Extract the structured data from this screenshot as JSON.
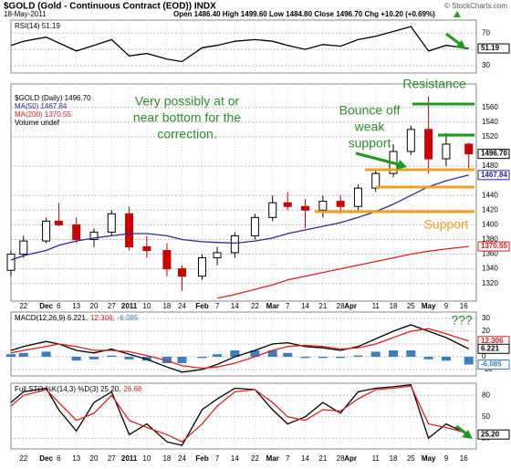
{
  "header": {
    "title": "$GOLD (Gold - Continuous Contract (EOD)) INDX",
    "date": "18-May-2011",
    "quote": "Open 1486.40 High 1499.60 Low 1484.80 Close 1496.70 Chg +10.20 (+0.69%)",
    "credit": "© StockCharts.com"
  },
  "xaxis": {
    "xlim": [
      0,
      185
    ],
    "xticks": [
      {
        "value": 5,
        "label": "22"
      },
      {
        "value": 14,
        "label": "Dec"
      },
      {
        "value": 19,
        "label": "6"
      },
      {
        "value": 26,
        "label": "13"
      },
      {
        "value": 33,
        "label": "20"
      },
      {
        "value": 40,
        "label": "27"
      },
      {
        "value": 47,
        "label": "2011"
      },
      {
        "value": 54,
        "label": "10"
      },
      {
        "value": 62,
        "label": "18"
      },
      {
        "value": 68,
        "label": "24"
      },
      {
        "value": 76,
        "label": "Feb"
      },
      {
        "value": 82,
        "label": "7"
      },
      {
        "value": 89,
        "label": "14"
      },
      {
        "value": 97,
        "label": "22"
      },
      {
        "value": 104,
        "label": "Mar"
      },
      {
        "value": 110,
        "label": "7"
      },
      {
        "value": 117,
        "label": "14"
      },
      {
        "value": 124,
        "label": "21"
      },
      {
        "value": 131,
        "label": "28"
      },
      {
        "value": 135,
        "label": "Apr"
      },
      {
        "value": 145,
        "label": "11"
      },
      {
        "value": 152,
        "label": "18"
      },
      {
        "value": 159,
        "label": "25"
      },
      {
        "value": 166,
        "label": "May"
      },
      {
        "value": 173,
        "label": "9"
      },
      {
        "value": 180,
        "label": "16"
      }
    ]
  },
  "chart_data": [
    {
      "type": "line",
      "legend": [
        {
          "text": "RSI(14) 51.19",
          "color": "#000000"
        }
      ],
      "x": [
        0,
        5,
        14,
        19,
        26,
        33,
        40,
        47,
        54,
        62,
        68,
        76,
        82,
        89,
        97,
        104,
        110,
        117,
        124,
        131,
        138,
        145,
        152,
        159,
        166,
        173,
        182
      ],
      "ylim": [
        21,
        86
      ],
      "yticks": [
        30,
        50,
        70
      ],
      "series": [
        {
          "color": "#000000",
          "values": [
            55,
            60,
            65,
            58,
            48,
            55,
            62,
            42,
            45,
            38,
            35,
            52,
            55,
            60,
            62,
            60,
            55,
            50,
            56,
            54,
            62,
            66,
            72,
            78,
            48,
            55,
            51.19
          ]
        }
      ],
      "value_boxes": [
        {
          "label": "51.19",
          "value": 51.19,
          "color": "#000000"
        }
      ]
    },
    {
      "type": "candlestick",
      "legend": [
        {
          "text": "$GOLD (Daily) 1496.70",
          "color": "#000000"
        },
        {
          "text": "MA(50) 1467.84",
          "color": "#2a2a9a"
        },
        {
          "text": "MA(200) 1370.55",
          "color": "#dd2222"
        },
        {
          "text": "Volume undef",
          "color": "#000000"
        }
      ],
      "x": [
        0,
        5,
        14,
        19,
        26,
        33,
        40,
        47,
        54,
        62,
        68,
        76,
        82,
        89,
        97,
        104,
        110,
        117,
        124,
        131,
        138,
        145,
        152,
        159,
        166,
        173,
        182
      ],
      "ylim": [
        1296,
        1592
      ],
      "yticks": [
        1320,
        1340,
        1360,
        1380,
        1400,
        1420,
        1440,
        1480,
        1520,
        1540,
        1560
      ],
      "up_color": "#000000",
      "down_color": "#cc0000",
      "ohlc": {
        "open": [
          1338,
          1360,
          1378,
          1405,
          1400,
          1380,
          1390,
          1415,
          1370,
          1365,
          1340,
          1330,
          1355,
          1362,
          1385,
          1410,
          1430,
          1425,
          1420,
          1432,
          1425,
          1450,
          1470,
          1500,
          1530,
          1490,
          1510
        ],
        "high": [
          1365,
          1385,
          1410,
          1430,
          1410,
          1395,
          1420,
          1425,
          1385,
          1375,
          1345,
          1360,
          1370,
          1390,
          1415,
          1440,
          1445,
          1435,
          1440,
          1440,
          1455,
          1475,
          1510,
          1535,
          1575,
          1525,
          1512
        ],
        "low": [
          1330,
          1355,
          1375,
          1398,
          1375,
          1370,
          1385,
          1365,
          1355,
          1330,
          1310,
          1325,
          1345,
          1355,
          1380,
          1405,
          1420,
          1395,
          1410,
          1415,
          1420,
          1445,
          1465,
          1495,
          1470,
          1480,
          1475
        ],
        "close": [
          1360,
          1378,
          1405,
          1400,
          1380,
          1390,
          1415,
          1370,
          1365,
          1340,
          1330,
          1355,
          1362,
          1385,
          1410,
          1430,
          1425,
          1420,
          1432,
          1425,
          1450,
          1470,
          1500,
          1530,
          1490,
          1510,
          1496.7
        ]
      },
      "series": [
        {
          "color": "#2a2a9a",
          "values": [
            1352,
            1358,
            1365,
            1372,
            1378,
            1382,
            1385,
            1388,
            1388,
            1385,
            1380,
            1377,
            1376,
            1375,
            1378,
            1382,
            1388,
            1393,
            1398,
            1403,
            1410,
            1418,
            1428,
            1440,
            1452,
            1460,
            1467.84
          ]
        },
        {
          "color": "#dd2222",
          "values": [
            null,
            null,
            null,
            null,
            null,
            null,
            null,
            null,
            null,
            null,
            null,
            null,
            1300,
            1305,
            1312,
            1318,
            1325,
            1330,
            1335,
            1340,
            1345,
            1350,
            1355,
            1360,
            1364,
            1367,
            1370.55
          ]
        }
      ],
      "value_boxes": [
        {
          "label": "1496.70",
          "value": 1496.7,
          "color": "#000000"
        },
        {
          "label": "1467.84",
          "value": 1467.84,
          "color": "#2a2a9a"
        },
        {
          "label": "1370.55",
          "value": 1370.55,
          "color": "#dd2222"
        }
      ],
      "annotations": {
        "note": [
          "Very possibly at or",
          "near bottom for the",
          "correction."
        ],
        "resistance": "Resistance",
        "bounce": [
          "Bounce off",
          "weak",
          "support"
        ],
        "support": "Support"
      }
    },
    {
      "type": "macd",
      "legend": [
        {
          "text": "MACD(12,26,9) 6.221,",
          "color": "#000000"
        },
        {
          "text": "12.306,",
          "color": "#dd2222"
        },
        {
          "text": "-6.085",
          "color": "#3a7fc0"
        }
      ],
      "x": [
        0,
        5,
        14,
        19,
        26,
        33,
        40,
        47,
        54,
        62,
        68,
        76,
        82,
        89,
        97,
        104,
        110,
        117,
        124,
        131,
        138,
        145,
        152,
        159,
        166,
        173,
        182
      ],
      "ylim": [
        -15,
        35
      ],
      "yticks": [
        -10,
        0,
        10,
        20,
        30
      ],
      "series": [
        {
          "kind": "bar",
          "color": "#3a7fc0",
          "values": [
            2,
            3,
            4,
            0,
            -3,
            -2,
            1,
            -2,
            -3,
            -5,
            -5,
            -1,
            2,
            5,
            5,
            5,
            3,
            -1,
            -1,
            -1,
            1,
            4,
            5,
            5,
            -2,
            -3,
            -6.085
          ]
        },
        {
          "color": "#000000",
          "values": [
            5,
            8,
            12,
            10,
            5,
            3,
            6,
            2,
            -2,
            -8,
            -12,
            -10,
            -6,
            0,
            5,
            10,
            11,
            8,
            7,
            5,
            8,
            14,
            20,
            25,
            20,
            15,
            6.221
          ]
        },
        {
          "color": "#dd2222",
          "values": [
            3,
            5,
            8,
            10,
            8,
            5,
            5,
            4,
            1,
            -3,
            -7,
            -9,
            -8,
            -5,
            0,
            5,
            8,
            9,
            8,
            6,
            7,
            10,
            15,
            20,
            22,
            18,
            12.306
          ]
        }
      ],
      "value_boxes": [
        {
          "label": "12.306",
          "value": 12.306,
          "color": "#dd2222"
        },
        {
          "label": "6.221",
          "value": 6.221,
          "color": "#000000"
        },
        {
          "label": "-6.085",
          "value": -6.085,
          "color": "#3a7fc0"
        }
      ],
      "annotations": {
        "question": "???"
      }
    },
    {
      "type": "line",
      "legend": [
        {
          "text": "Full STO %K(14,3) %D(3) 25.20,",
          "color": "#000000"
        },
        {
          "text": "26.68",
          "color": "#dd2222"
        }
      ],
      "x": [
        0,
        5,
        14,
        19,
        26,
        33,
        40,
        47,
        54,
        62,
        68,
        76,
        82,
        89,
        97,
        104,
        110,
        117,
        124,
        131,
        138,
        145,
        152,
        159,
        166,
        173,
        182
      ],
      "ylim": [
        5,
        97
      ],
      "yticks": [
        20,
        50,
        80
      ],
      "series": [
        {
          "color": "#000000",
          "values": [
            70,
            85,
            90,
            60,
            30,
            70,
            85,
            25,
            40,
            15,
            10,
            60,
            75,
            90,
            88,
            60,
            40,
            50,
            70,
            55,
            85,
            90,
            92,
            95,
            20,
            40,
            25.2
          ]
        },
        {
          "color": "#dd2222",
          "values": [
            65,
            80,
            88,
            70,
            45,
            55,
            80,
            45,
            35,
            25,
            15,
            40,
            65,
            85,
            88,
            70,
            50,
            45,
            60,
            58,
            75,
            88,
            90,
            93,
            40,
            35,
            26.68
          ]
        }
      ],
      "value_boxes": [
        {
          "label": "25.20",
          "value": 25.2,
          "color": "#000000"
        }
      ]
    }
  ]
}
